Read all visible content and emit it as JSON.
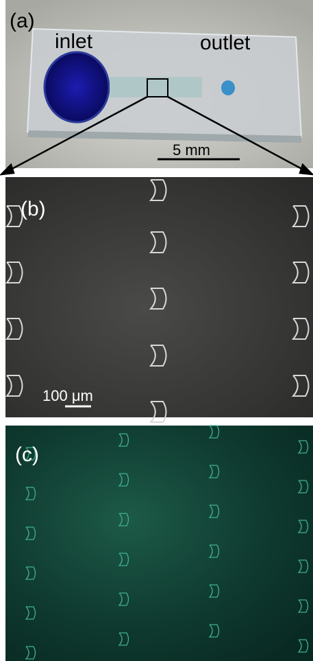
{
  "panel_a": {
    "label": "(a)",
    "inlet": "inlet",
    "outlet": "outlet",
    "scale_bar": "5 mm"
  },
  "panel_b": {
    "label": "(b)",
    "scale_bar": "100 μm"
  },
  "panel_c": {
    "label": "(c)"
  }
}
